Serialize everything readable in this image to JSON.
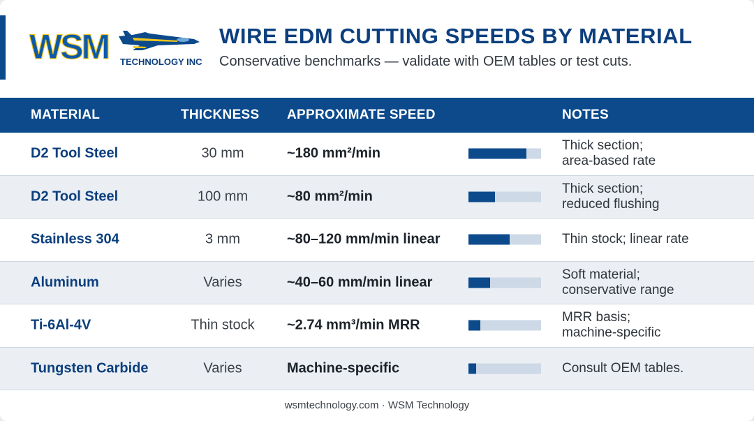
{
  "brand": {
    "logo_text": "WSM",
    "logo_subtext": "TECHNOLOGY INC.",
    "colors": {
      "primary": "#0c4a8c",
      "logo_blue": "#0c5aa8",
      "logo_yellow": "#f2c51c",
      "alt_row": "#ebeff4",
      "bar_track": "#cdd9e6"
    }
  },
  "header": {
    "title": "WIRE EDM CUTTING SPEEDS BY MATERIAL",
    "subtitle": "Conservative benchmarks — validate with OEM tables or test cuts."
  },
  "table": {
    "columns": {
      "material": "MATERIAL",
      "thickness": "THICKNESS",
      "speed": "APPROXIMATE SPEED",
      "notes": "NOTES"
    },
    "rows": [
      {
        "material": "D2 Tool Steel",
        "thickness": "30 mm",
        "speed": "~180 mm²/min",
        "bar_level": 0.8,
        "notes": [
          "Thick section;",
          "area-based rate"
        ]
      },
      {
        "material": "D2 Tool Steel",
        "thickness": "100 mm",
        "speed": "~80 mm²/min",
        "bar_level": 0.37,
        "notes": [
          "Thick section;",
          "reduced flushing"
        ]
      },
      {
        "material": "Stainless 304",
        "thickness": "3 mm",
        "speed": "~80–120 mm/min linear",
        "bar_level": 0.57,
        "notes": [
          "Thin stock; linear rate"
        ]
      },
      {
        "material": "Aluminum",
        "thickness": "Varies",
        "speed": "~40–60 mm/min linear",
        "bar_level": 0.3,
        "notes": [
          "Soft material;",
          "conservative range"
        ]
      },
      {
        "material": "Ti-6Al-4V",
        "thickness": "Thin stock",
        "speed": "~2.74 mm³/min MRR",
        "bar_level": 0.16,
        "notes": [
          "MRR basis;",
          "machine-specific"
        ]
      },
      {
        "material": "Tungsten Carbide",
        "thickness": "Varies",
        "speed": "Machine-specific",
        "bar_level": 0.11,
        "notes": [
          "Consult OEM tables."
        ]
      }
    ]
  },
  "footer": {
    "text": "wsmtechnology.com · WSM Technology"
  }
}
